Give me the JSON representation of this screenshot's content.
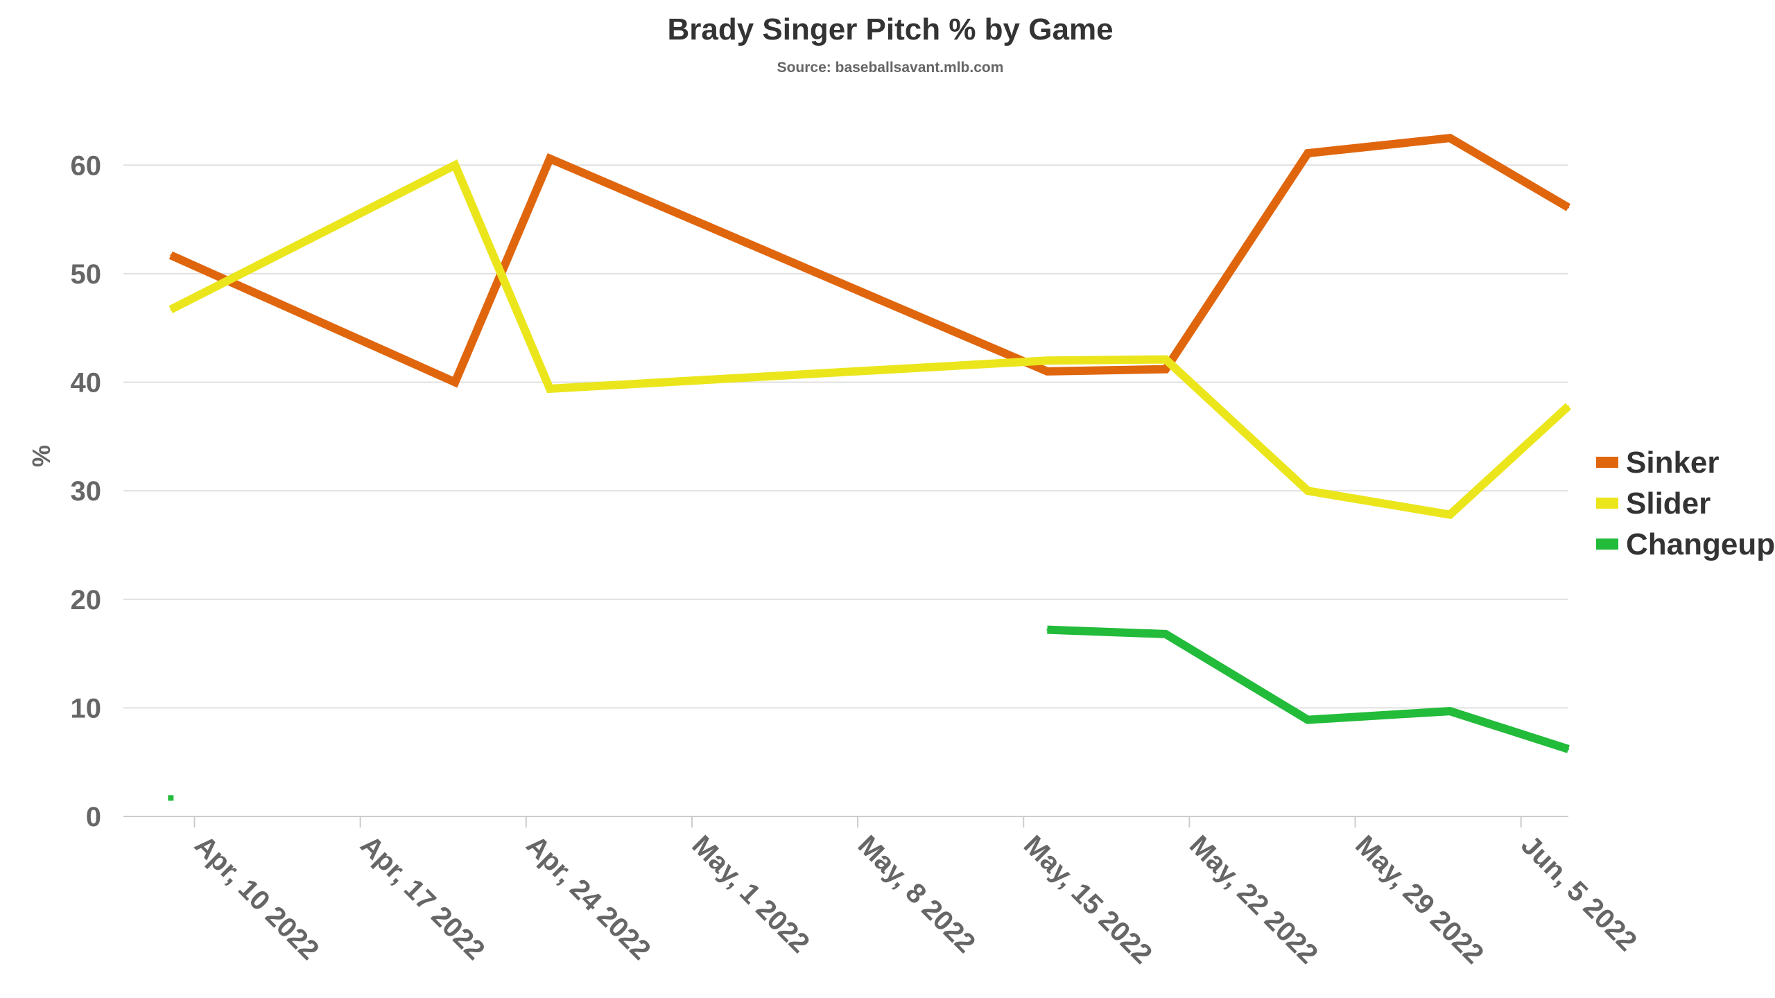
{
  "chart_data": {
    "type": "line",
    "title": "Brady Singer Pitch % by Game",
    "subtitle": "Source: baseballsavant.mlb.com",
    "xlabel": "",
    "ylabel": "%",
    "ylim": [
      0,
      65
    ],
    "yticks": [
      0,
      10,
      20,
      30,
      40,
      50,
      60
    ],
    "xlim": [
      "2022-04-07",
      "2022-06-07"
    ],
    "xticks": [
      {
        "date": "2022-04-10",
        "label": "Apr, 10 2022"
      },
      {
        "date": "2022-04-17",
        "label": "Apr, 17 2022"
      },
      {
        "date": "2022-04-24",
        "label": "Apr, 24 2022"
      },
      {
        "date": "2022-05-01",
        "label": "May, 1 2022"
      },
      {
        "date": "2022-05-08",
        "label": "May, 8 2022"
      },
      {
        "date": "2022-05-15",
        "label": "May, 15 2022"
      },
      {
        "date": "2022-05-22",
        "label": "May, 22 2022"
      },
      {
        "date": "2022-05-29",
        "label": "May, 29 2022"
      },
      {
        "date": "2022-06-05",
        "label": "Jun, 5 2022"
      }
    ],
    "grid": true,
    "legend_position": "right",
    "series": [
      {
        "name": "Sinker",
        "color": "#e0660e",
        "points": [
          {
            "x": "2022-04-09",
            "y": 51.7
          },
          {
            "x": "2022-04-21",
            "y": 40.0
          },
          {
            "x": "2022-04-25",
            "y": 60.6
          },
          {
            "x": "2022-05-16",
            "y": 41.0
          },
          {
            "x": "2022-05-21",
            "y": 41.2
          },
          {
            "x": "2022-05-27",
            "y": 61.1
          },
          {
            "x": "2022-06-02",
            "y": 62.5
          },
          {
            "x": "2022-06-07",
            "y": 56.1
          }
        ]
      },
      {
        "name": "Slider",
        "color": "#ebe61c",
        "points": [
          {
            "x": "2022-04-09",
            "y": 46.7
          },
          {
            "x": "2022-04-21",
            "y": 60.0
          },
          {
            "x": "2022-04-25",
            "y": 39.4
          },
          {
            "x": "2022-05-16",
            "y": 42.0
          },
          {
            "x": "2022-05-21",
            "y": 42.1
          },
          {
            "x": "2022-05-27",
            "y": 30.0
          },
          {
            "x": "2022-06-02",
            "y": 27.8
          },
          {
            "x": "2022-06-07",
            "y": 37.8
          }
        ]
      },
      {
        "name": "Changeup",
        "color": "#22bb3a",
        "points": [
          {
            "x": "2022-04-09",
            "y": 1.7
          },
          {
            "x": "2022-05-16",
            "y": 17.2
          },
          {
            "x": "2022-05-21",
            "y": 16.8
          },
          {
            "x": "2022-05-27",
            "y": 8.9
          },
          {
            "x": "2022-06-02",
            "y": 9.7
          },
          {
            "x": "2022-06-07",
            "y": 6.2
          }
        ],
        "gap_after_index": 0
      }
    ]
  }
}
